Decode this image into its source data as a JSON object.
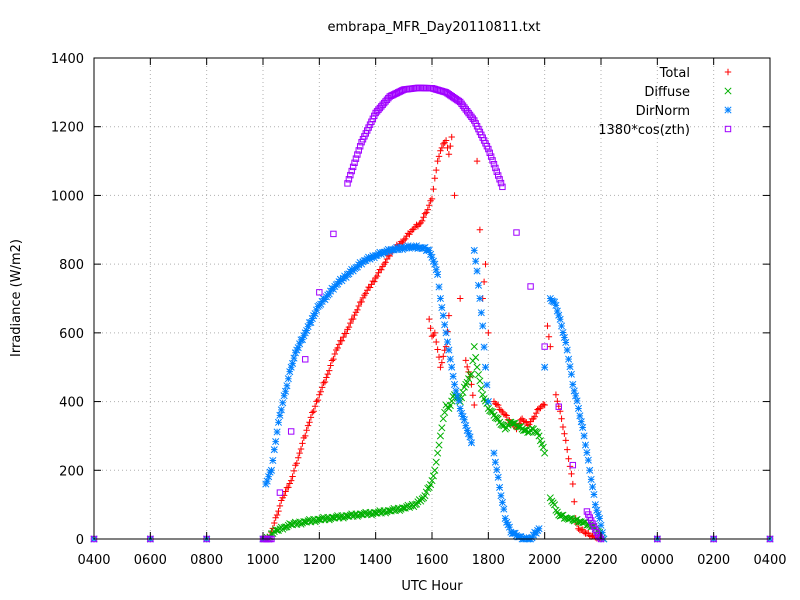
{
  "chart_data": {
    "type": "scatter",
    "title": "embrapa_MFR_Day20110811.txt",
    "xlabel": "UTC Hour",
    "ylabel": "Irradiance (W/m2)",
    "xlim": [
      4,
      28
    ],
    "ylim": [
      0,
      1400
    ],
    "grid": true,
    "legend_position": "top-right",
    "x_tick_values": [
      4,
      6,
      8,
      10,
      12,
      14,
      16,
      18,
      20,
      22,
      24,
      26,
      28
    ],
    "x_tick_labels": [
      "0400",
      "0600",
      "0800",
      "1000",
      "1200",
      "1400",
      "1600",
      "1800",
      "2000",
      "2200",
      "0000",
      "0200",
      "0400"
    ],
    "y_tick_values": [
      0,
      200,
      400,
      600,
      800,
      1000,
      1200,
      1400
    ],
    "y_tick_labels": [
      "0",
      "200",
      "400",
      "600",
      "800",
      "1000",
      "1200",
      "1400"
    ],
    "series": [
      {
        "name": "Total",
        "color": "#ff0000",
        "marker": "plus",
        "points": [
          [
            4.0,
            0
          ],
          [
            6.0,
            0
          ],
          [
            8.0,
            0
          ],
          [
            10.0,
            0
          ],
          [
            10.2,
            0
          ],
          [
            10.3,
            20
          ],
          [
            10.5,
            70
          ],
          [
            10.7,
            120
          ],
          [
            11.0,
            170
          ],
          [
            11.3,
            250
          ],
          [
            11.6,
            330
          ],
          [
            12.0,
            420
          ],
          [
            12.3,
            480
          ],
          [
            12.6,
            550
          ],
          [
            13.0,
            610
          ],
          [
            13.3,
            660
          ],
          [
            13.6,
            710
          ],
          [
            14.0,
            760
          ],
          [
            14.3,
            800
          ],
          [
            14.6,
            840
          ],
          [
            15.0,
            870
          ],
          [
            15.3,
            900
          ],
          [
            15.6,
            920
          ],
          [
            15.8,
            950
          ],
          [
            16.0,
            990
          ],
          [
            16.1,
            1050
          ],
          [
            16.2,
            1100
          ],
          [
            16.3,
            1130
          ],
          [
            16.4,
            1150
          ],
          [
            16.5,
            1160
          ],
          [
            16.6,
            1120
          ],
          [
            16.7,
            1170
          ],
          [
            15.9,
            640
          ],
          [
            16.0,
            590
          ],
          [
            16.1,
            600
          ],
          [
            16.3,
            500
          ],
          [
            16.5,
            560
          ],
          [
            16.6,
            650
          ],
          [
            16.8,
            1000
          ],
          [
            17.0,
            700
          ],
          [
            17.2,
            520
          ],
          [
            17.4,
            450
          ],
          [
            17.5,
            390
          ],
          [
            17.6,
            1100
          ],
          [
            17.7,
            900
          ],
          [
            17.8,
            700
          ],
          [
            17.9,
            800
          ],
          [
            18.0,
            600
          ],
          [
            18.2,
            400
          ],
          [
            18.5,
            370
          ],
          [
            18.8,
            340
          ],
          [
            19.0,
            320
          ],
          [
            19.2,
            350
          ],
          [
            19.4,
            330
          ],
          [
            19.6,
            350
          ],
          [
            19.8,
            380
          ],
          [
            20.0,
            390
          ],
          [
            20.1,
            620
          ],
          [
            20.2,
            560
          ],
          [
            20.4,
            420
          ],
          [
            20.6,
            350
          ],
          [
            20.8,
            260
          ],
          [
            21.0,
            160
          ],
          [
            21.1,
            60
          ],
          [
            21.2,
            30
          ],
          [
            21.4,
            20
          ],
          [
            21.6,
            10
          ],
          [
            21.8,
            5
          ],
          [
            22.0,
            0
          ],
          [
            24.0,
            0
          ],
          [
            26.0,
            0
          ],
          [
            28.0,
            0
          ]
        ]
      },
      {
        "name": "Diffuse",
        "color": "#00b000",
        "marker": "cross",
        "points": [
          [
            4.0,
            0
          ],
          [
            6.0,
            0
          ],
          [
            8.0,
            0
          ],
          [
            10.0,
            0
          ],
          [
            10.2,
            0
          ],
          [
            10.3,
            15
          ],
          [
            10.5,
            25
          ],
          [
            10.8,
            35
          ],
          [
            11.0,
            42
          ],
          [
            11.5,
            50
          ],
          [
            12.0,
            57
          ],
          [
            12.5,
            62
          ],
          [
            13.0,
            67
          ],
          [
            13.5,
            72
          ],
          [
            14.0,
            76
          ],
          [
            14.5,
            82
          ],
          [
            15.0,
            90
          ],
          [
            15.4,
            100
          ],
          [
            15.7,
            120
          ],
          [
            15.9,
            150
          ],
          [
            16.0,
            170
          ],
          [
            16.1,
            200
          ],
          [
            16.2,
            250
          ],
          [
            16.3,
            300
          ],
          [
            16.4,
            350
          ],
          [
            16.5,
            390
          ],
          [
            16.6,
            380
          ],
          [
            16.8,
            420
          ],
          [
            17.0,
            400
          ],
          [
            17.2,
            450
          ],
          [
            17.4,
            480
          ],
          [
            17.5,
            560
          ],
          [
            17.6,
            500
          ],
          [
            17.7,
            460
          ],
          [
            17.8,
            420
          ],
          [
            18.0,
            380
          ],
          [
            18.2,
            360
          ],
          [
            18.4,
            340
          ],
          [
            18.6,
            320
          ],
          [
            18.8,
            340
          ],
          [
            19.0,
            330
          ],
          [
            19.2,
            320
          ],
          [
            19.4,
            310
          ],
          [
            19.6,
            320
          ],
          [
            19.8,
            300
          ],
          [
            20.0,
            250
          ],
          [
            20.2,
            120
          ],
          [
            20.5,
            70
          ],
          [
            20.8,
            60
          ],
          [
            21.0,
            55
          ],
          [
            21.3,
            50
          ],
          [
            21.6,
            40
          ],
          [
            21.8,
            30
          ],
          [
            22.0,
            10
          ],
          [
            22.1,
            0
          ],
          [
            24.0,
            0
          ],
          [
            26.0,
            0
          ],
          [
            28.0,
            0
          ]
        ]
      },
      {
        "name": "DirNorm",
        "color": "#0080ff",
        "marker": "star",
        "points": [
          [
            4.0,
            0
          ],
          [
            6.0,
            0
          ],
          [
            8.0,
            0
          ],
          [
            10.0,
            0
          ],
          [
            10.1,
            160
          ],
          [
            10.3,
            200
          ],
          [
            10.4,
            260
          ],
          [
            10.6,
            360
          ],
          [
            10.8,
            430
          ],
          [
            11.0,
            500
          ],
          [
            11.2,
            550
          ],
          [
            11.5,
            600
          ],
          [
            11.8,
            650
          ],
          [
            12.0,
            680
          ],
          [
            12.3,
            710
          ],
          [
            12.6,
            740
          ],
          [
            13.0,
            770
          ],
          [
            13.3,
            790
          ],
          [
            13.6,
            810
          ],
          [
            14.0,
            825
          ],
          [
            14.3,
            835
          ],
          [
            14.6,
            842
          ],
          [
            15.0,
            848
          ],
          [
            15.3,
            850
          ],
          [
            15.6,
            848
          ],
          [
            15.9,
            840
          ],
          [
            16.0,
            820
          ],
          [
            16.1,
            800
          ],
          [
            16.2,
            770
          ],
          [
            16.3,
            700
          ],
          [
            16.4,
            650
          ],
          [
            16.5,
            600
          ],
          [
            16.6,
            550
          ],
          [
            16.7,
            500
          ],
          [
            16.8,
            450
          ],
          [
            17.0,
            380
          ],
          [
            17.2,
            330
          ],
          [
            17.4,
            280
          ],
          [
            17.5,
            840
          ],
          [
            17.6,
            780
          ],
          [
            17.7,
            700
          ],
          [
            17.8,
            620
          ],
          [
            17.9,
            500
          ],
          [
            18.0,
            400
          ],
          [
            18.2,
            250
          ],
          [
            18.4,
            150
          ],
          [
            18.6,
            60
          ],
          [
            18.8,
            20
          ],
          [
            19.0,
            10
          ],
          [
            19.2,
            0
          ],
          [
            19.5,
            0
          ],
          [
            19.8,
            30
          ],
          [
            20.0,
            500
          ],
          [
            20.2,
            700
          ],
          [
            20.4,
            680
          ],
          [
            20.6,
            620
          ],
          [
            20.8,
            550
          ],
          [
            21.0,
            450
          ],
          [
            21.2,
            380
          ],
          [
            21.4,
            300
          ],
          [
            21.6,
            200
          ],
          [
            21.8,
            100
          ],
          [
            22.0,
            40
          ],
          [
            22.1,
            0
          ],
          [
            24.0,
            0
          ],
          [
            26.0,
            0
          ],
          [
            28.0,
            0
          ]
        ]
      },
      {
        "name": "1380*cos(zth)",
        "color": "#a000ff",
        "marker": "square",
        "points": [
          [
            4.0,
            0
          ],
          [
            6.0,
            0
          ],
          [
            8.0,
            0
          ],
          [
            10.0,
            0
          ],
          [
            10.3,
            0
          ],
          [
            10.6,
            135
          ],
          [
            11.0,
            313
          ],
          [
            11.5,
            523
          ],
          [
            12.0,
            718
          ],
          [
            12.5,
            888
          ],
          [
            13.0,
            1035
          ],
          [
            13.5,
            1155
          ],
          [
            14.0,
            1240
          ],
          [
            14.5,
            1288
          ],
          [
            15.0,
            1308
          ],
          [
            15.5,
            1313
          ],
          [
            16.0,
            1312
          ],
          [
            16.5,
            1300
          ],
          [
            17.0,
            1272
          ],
          [
            17.5,
            1218
          ],
          [
            18.0,
            1135
          ],
          [
            18.5,
            1025
          ],
          [
            19.0,
            892
          ],
          [
            19.5,
            735
          ],
          [
            20.0,
            560
          ],
          [
            20.5,
            385
          ],
          [
            21.0,
            215
          ],
          [
            21.5,
            80
          ],
          [
            21.9,
            10
          ],
          [
            22.0,
            0
          ],
          [
            24.0,
            0
          ],
          [
            26.0,
            0
          ],
          [
            28.0,
            0
          ]
        ]
      }
    ]
  }
}
